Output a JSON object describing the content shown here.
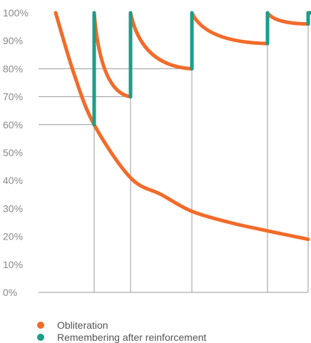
{
  "chart_data": {
    "type": "line",
    "yticks": [
      "100%",
      "90%",
      "80%",
      "70%",
      "60%",
      "50%",
      "40%",
      "30%",
      "20%",
      "10%",
      "0%"
    ],
    "ylim": [
      0,
      100
    ],
    "xlim": [
      0,
      10
    ],
    "series": [
      {
        "name": "Obliteration",
        "color": "#f26b2a",
        "points": [
          [
            0,
            100
          ],
          [
            1,
            78
          ],
          [
            2,
            60
          ],
          [
            3,
            41
          ],
          [
            4,
            35
          ],
          [
            5,
            29
          ],
          [
            6,
            25
          ],
          [
            7,
            22
          ],
          [
            8,
            19
          ]
        ]
      },
      {
        "name": "Remembering after reinforcement",
        "color": "#1a9e8a",
        "segments": [
          {
            "x": 2,
            "from": 60,
            "to": 100,
            "decay_to_x": 3,
            "decay_to": 70
          },
          {
            "x": 3,
            "from": 70,
            "to": 100,
            "decay_to_x": 5,
            "decay_to": 80
          },
          {
            "x": 5,
            "from": 80,
            "to": 100,
            "decay_to_x": 7,
            "decay_to": 89
          },
          {
            "x": 7,
            "from": 89,
            "to": 100,
            "decay_to_x": 8,
            "decay_to": 96
          },
          {
            "x": 8,
            "from": 96,
            "to": 100
          }
        ]
      }
    ],
    "reference_levels": [
      60,
      70,
      80,
      89
    ],
    "legend": [
      "Obliteration",
      "Remembering after reinforcement"
    ],
    "legend_position": "bottom-left",
    "grid": false
  }
}
